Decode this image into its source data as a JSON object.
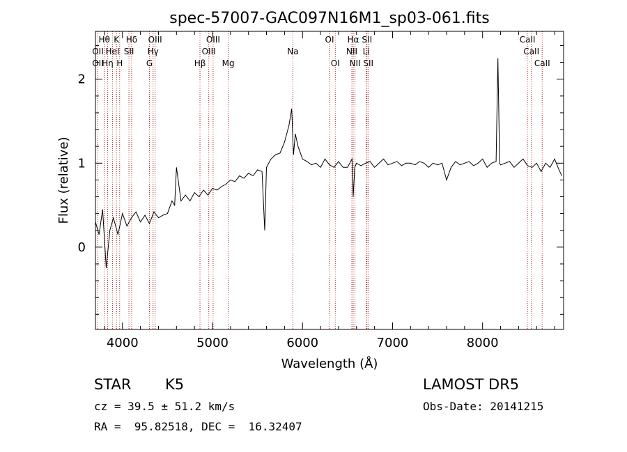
{
  "chart_data": {
    "type": "line",
    "title": "spec-57007-GAC097N16M1_sp03-061.fits",
    "xlabel": "Wavelength (Å)",
    "ylabel": "Flux (relative)",
    "xlim": [
      3700,
      8900
    ],
    "ylim": [
      -0.98,
      2.57
    ],
    "xticks": [
      4000,
      5000,
      6000,
      7000,
      8000
    ],
    "yticks": [
      0,
      1,
      2
    ],
    "grid": false,
    "series": [
      {
        "x": [
          3700,
          3740,
          3780,
          3820,
          3860,
          3900,
          3950,
          4000,
          4050,
          4100,
          4150,
          4200,
          4250,
          4300,
          4350,
          4400,
          4450,
          4500,
          4550,
          4580,
          4600,
          4650,
          4700,
          4750,
          4800,
          4850,
          4900,
          4950,
          5000,
          5050,
          5100,
          5150,
          5200,
          5250,
          5300,
          5350,
          5400,
          5450,
          5500,
          5550,
          5580,
          5600,
          5650,
          5700,
          5750,
          5800,
          5850,
          5880,
          5900,
          5920,
          5950,
          6000,
          6050,
          6100,
          6150,
          6200,
          6250,
          6300,
          6350,
          6400,
          6450,
          6500,
          6550,
          6563,
          6580,
          6600,
          6650,
          6700,
          6750,
          6800,
          6850,
          6900,
          6950,
          7000,
          7050,
          7100,
          7150,
          7200,
          7250,
          7300,
          7350,
          7400,
          7450,
          7500,
          7550,
          7600,
          7650,
          7700,
          7750,
          7800,
          7850,
          7900,
          7950,
          8000,
          8050,
          8100,
          8150,
          8170,
          8190,
          8200,
          8250,
          8300,
          8350,
          8400,
          8450,
          8500,
          8550,
          8600,
          8650,
          8700,
          8750,
          8800,
          8850,
          8880
        ],
        "values": [
          0.3,
          0.15,
          0.45,
          -0.25,
          0.2,
          0.35,
          0.15,
          0.4,
          0.25,
          0.35,
          0.42,
          0.3,
          0.38,
          0.28,
          0.42,
          0.35,
          0.38,
          0.4,
          0.55,
          0.5,
          0.95,
          0.55,
          0.62,
          0.55,
          0.65,
          0.6,
          0.68,
          0.62,
          0.7,
          0.68,
          0.72,
          0.75,
          0.8,
          0.78,
          0.85,
          0.82,
          0.88,
          0.85,
          0.92,
          0.9,
          0.2,
          0.95,
          1.05,
          1.1,
          1.12,
          1.25,
          1.45,
          1.65,
          1.1,
          1.35,
          1.2,
          1.05,
          1.02,
          0.98,
          1.0,
          0.95,
          1.05,
          0.98,
          0.95,
          1.02,
          0.95,
          0.95,
          1.05,
          0.6,
          0.95,
          1.0,
          0.97,
          1.0,
          1.02,
          0.95,
          1.0,
          1.05,
          0.98,
          1.0,
          1.02,
          0.97,
          1.0,
          1.0,
          0.98,
          1.02,
          1.0,
          0.95,
          1.0,
          0.98,
          1.0,
          0.8,
          0.95,
          1.02,
          0.98,
          1.0,
          1.02,
          0.97,
          1.0,
          1.05,
          0.95,
          1.0,
          1.02,
          2.25,
          1.0,
          0.98,
          1.0,
          1.02,
          0.95,
          1.0,
          1.05,
          0.97,
          0.95,
          1.0,
          0.9,
          1.0,
          0.95,
          1.05,
          0.92,
          0.85
        ]
      }
    ],
    "spectral_lines": [
      {
        "wl": 3798,
        "label": "Hθ",
        "row": 0
      },
      {
        "wl": 3727,
        "label": "OII",
        "row": 1
      },
      {
        "wl": 3727,
        "label": "OII",
        "row": 2
      },
      {
        "wl": 3835,
        "label": "Hη",
        "row": 2
      },
      {
        "wl": 3889,
        "label": "HeI",
        "row": 1
      },
      {
        "wl": 3934,
        "label": "K",
        "row": 0
      },
      {
        "wl": 3969,
        "label": "H",
        "row": 2
      },
      {
        "wl": 4102,
        "label": "Hδ",
        "row": 0
      },
      {
        "wl": 4072,
        "label": "SII",
        "row": 1
      },
      {
        "wl": 4300,
        "label": "G",
        "row": 2
      },
      {
        "wl": 4340,
        "label": "Hγ",
        "row": 1
      },
      {
        "wl": 4363,
        "label": "OIII",
        "row": 0
      },
      {
        "wl": 4861,
        "label": "Hβ",
        "row": 2
      },
      {
        "wl": 4959,
        "label": "OIII",
        "row": 1
      },
      {
        "wl": 5007,
        "label": "OIII",
        "row": 0
      },
      {
        "wl": 5175,
        "label": "Mg",
        "row": 2
      },
      {
        "wl": 5893,
        "label": "Na",
        "row": 1
      },
      {
        "wl": 6300,
        "label": "OI",
        "row": 0
      },
      {
        "wl": 6364,
        "label": "OI",
        "row": 2
      },
      {
        "wl": 6548,
        "label": "NII",
        "row": 1
      },
      {
        "wl": 6563,
        "label": "Hα",
        "row": 0
      },
      {
        "wl": 6583,
        "label": "NII",
        "row": 2
      },
      {
        "wl": 6707,
        "label": "Li",
        "row": 1
      },
      {
        "wl": 6716,
        "label": "SII",
        "row": 0
      },
      {
        "wl": 6731,
        "label": "SII",
        "row": 2
      },
      {
        "wl": 8498,
        "label": "CaII",
        "row": 0
      },
      {
        "wl": 8542,
        "label": "CaII",
        "row": 1
      },
      {
        "wl": 8662,
        "label": "CaII",
        "row": 2
      }
    ],
    "colors": {
      "spectrum": "#000000",
      "line_marker": "#b22222"
    }
  },
  "info": {
    "object_class": "STAR",
    "subclass": "K5",
    "survey": "LAMOST DR5",
    "cz": "cz = 39.5 ± 51.2 km/s",
    "obs_date": "Obs-Date: 20141215",
    "coords": "RA =  95.82518, DEC =  16.32407"
  }
}
